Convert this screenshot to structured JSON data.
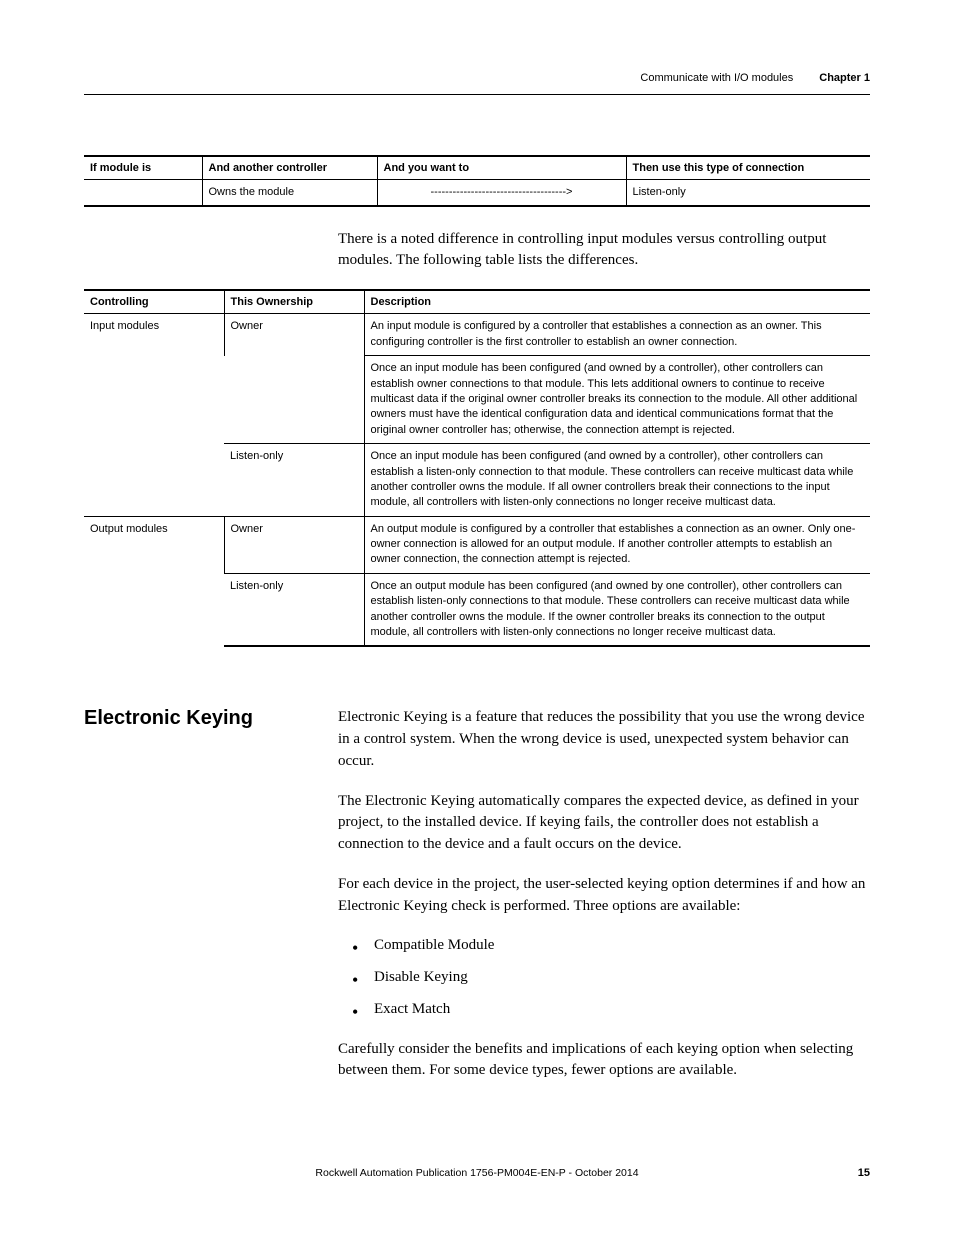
{
  "header": {
    "left": "Communicate with I/O modules",
    "right": "Chapter 1"
  },
  "table1": {
    "headers": [
      "If module is",
      "And another controller",
      "And you want to",
      "Then use this type of connection"
    ],
    "rows": [
      [
        "",
        "Owns the module",
        "------------------------------------->",
        "Listen-only"
      ]
    ]
  },
  "para1": "There is a noted difference in controlling input modules versus controlling output modules. The following table lists the differences.",
  "table2": {
    "headers": [
      "Controlling",
      "This Ownership",
      "Description"
    ],
    "rows": [
      {
        "c1": "Input modules",
        "c2": "Owner",
        "c3": "An input module is configured by a controller that establishes a connection as an owner. This configuring controller is the first controller to establish an owner connection."
      },
      {
        "c1": "",
        "c2": "",
        "c3": "Once an input module has been configured (and owned by a controller), other controllers can establish owner connections to that module. This lets additional owners to continue to receive multicast data if the original owner controller breaks its connection to the module. All other additional owners must have the identical configuration data and identical communications format that the original owner controller has; otherwise, the connection attempt is rejected.",
        "span": true
      },
      {
        "c1": "",
        "c2": "Listen-only",
        "c3": "Once an input module has been configured (and owned by a controller), other controllers can establish a listen-only connection to that module. These controllers can receive multicast data while another controller owns the module. If all owner controllers break their connections to the input module, all controllers with listen-only connections no longer receive multicast data.",
        "noc1border": true
      },
      {
        "c1": "Output modules",
        "c2": "Owner",
        "c3": "An output module is configured by a controller that establishes a connection as an owner. Only one-owner connection is allowed for an output module. If another controller attempts to establish an owner connection, the connection attempt is rejected."
      },
      {
        "c1": "",
        "c2": "Listen-only",
        "c3": "Once an output module has been configured (and owned by one controller), other controllers can establish listen-only connections to that module. These controllers can receive multicast data while another controller owns the module. If the owner controller breaks its connection to the output module, all controllers with listen-only connections no longer receive multicast data.",
        "noc1border": true
      }
    ]
  },
  "section": {
    "title": "Electronic Keying",
    "p1": "Electronic Keying is a feature that reduces the possibility that you use the wrong device in a control system. When the wrong device is used, unexpected system behavior can occur.",
    "p2": "The Electronic Keying automatically compares the expected device, as defined in your project, to the installed device. If keying fails, the controller does not establish a connection to the device and a fault occurs on the device.",
    "p3": "For each device in the project, the user-selected keying option determines if and how an Electronic Keying check is performed. Three options are available:",
    "bullets": [
      "Compatible Module",
      "Disable Keying",
      "Exact Match"
    ],
    "p4": "Carefully consider the benefits and implications of each keying option when selecting between them. For some device types, fewer options are available."
  },
  "footer": {
    "pub": "Rockwell Automation Publication 1756-PM004E-EN-P - October 2014",
    "page": "15"
  }
}
